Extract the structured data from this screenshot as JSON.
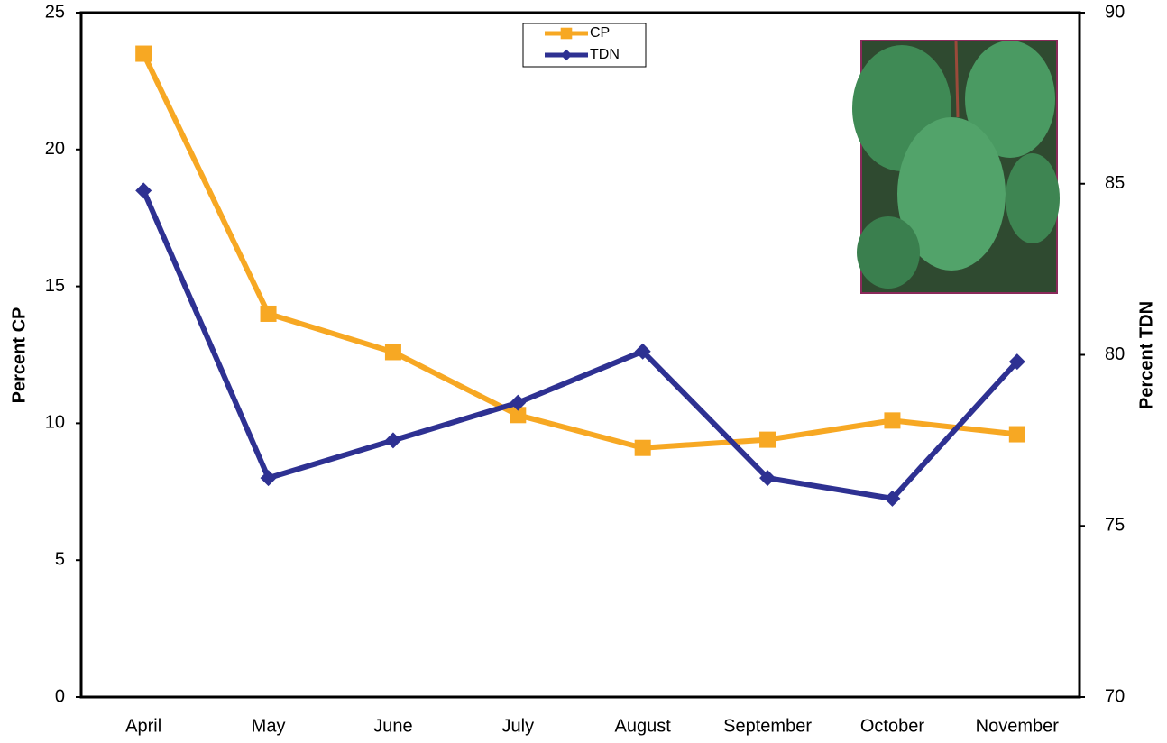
{
  "chart_data": {
    "type": "line",
    "categories": [
      "April",
      "May",
      "June",
      "July",
      "August",
      "September",
      "October",
      "November"
    ],
    "series": [
      {
        "name": "CP",
        "color": "#f7a823",
        "marker": "square",
        "values": [
          23.5,
          14.0,
          12.6,
          10.3,
          9.1,
          9.4,
          10.1,
          9.6
        ]
      },
      {
        "name": "TDN",
        "color": "#2e3192",
        "marker": "diamond",
        "axis": "y2",
        "values": [
          84.8,
          76.4,
          77.5,
          78.6,
          80.1,
          76.4,
          75.8,
          79.8
        ]
      }
    ],
    "ylabel": "Percent CP",
    "y2label": "Percent TDN",
    "ylim": [
      0,
      25
    ],
    "yticks": [
      0,
      5,
      10,
      15,
      20,
      25
    ],
    "y2lim": [
      70,
      90
    ],
    "y2ticks": [
      70,
      75,
      80,
      85,
      90
    ],
    "grid": false
  }
}
